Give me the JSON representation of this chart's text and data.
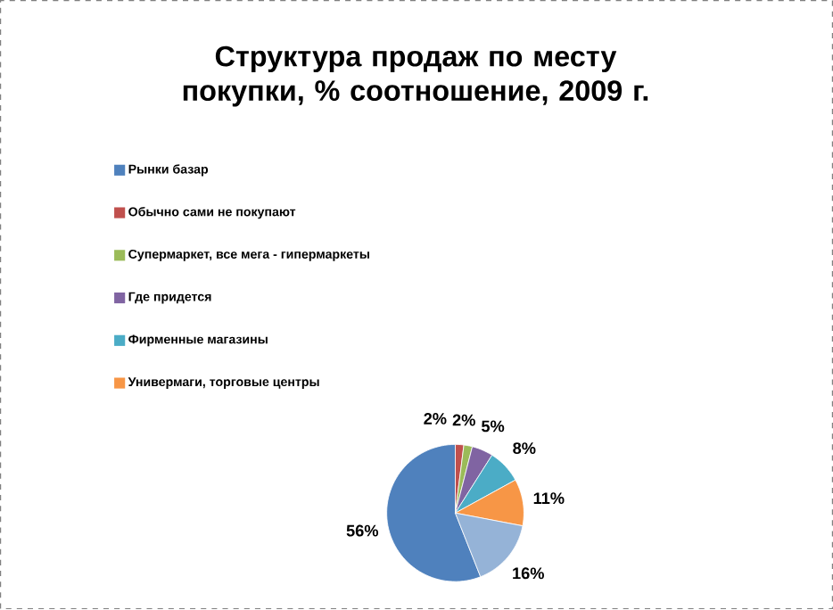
{
  "chart_data": {
    "type": "pie",
    "title": "Структура продаж по месту покупки, % соотношение,  2009 г.",
    "categories": [
      "Рынки базар",
      "Обычно сами не покупают",
      "Супермаркет, все мега - гипермаркеты",
      "Где придется",
      "Фирменные магазины",
      "Универмаги, торговые центры",
      null
    ],
    "values": [
      56,
      2,
      2,
      5,
      8,
      11,
      16
    ],
    "value_labels": [
      "56%",
      "2%",
      "2%",
      "5%",
      "8%",
      "11%",
      "16%"
    ],
    "colors": [
      "#4f81bd",
      "#c0504d",
      "#9bbb59",
      "#8064a2",
      "#4bacc6",
      "#f79646",
      "#95b3d7"
    ],
    "legend": "top"
  }
}
